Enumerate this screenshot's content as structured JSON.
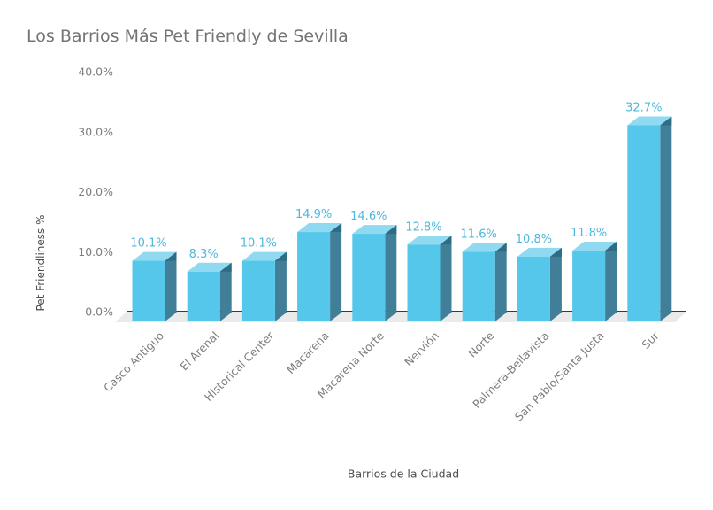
{
  "page": {
    "background": "#ffffff"
  },
  "chart_data": {
    "type": "bar",
    "title": "Los Barrios Más Pet Friendly de Sevilla",
    "xlabel": "Barrios de la Ciudad",
    "ylabel": "Pet Friendliness %",
    "categories": [
      "Casco Antiguo",
      "El Arenal",
      "Historical Center",
      "Macarena",
      "Macarena Norte",
      "Nervión",
      "Norte",
      "Palmera-Bellavista",
      "San Pablo/Santa Justa",
      "Sur"
    ],
    "values": [
      10.1,
      8.3,
      10.1,
      14.9,
      14.6,
      12.8,
      11.6,
      10.8,
      11.8,
      32.7
    ],
    "value_labels": [
      "10.1%",
      "8.3%",
      "10.1%",
      "14.9%",
      "14.6%",
      "12.8%",
      "11.6%",
      "10.8%",
      "11.8%",
      "32.7%"
    ],
    "ylim": [
      0,
      40
    ],
    "yticks": [
      0,
      10,
      20,
      30,
      40
    ],
    "ytick_labels": [
      "0.0%",
      "10.0%",
      "20.0%",
      "30.0%",
      "40.0%"
    ],
    "grid": false,
    "legend": false,
    "style_3d": true,
    "colors": {
      "bar_front": "#55c7eb",
      "bar_top": "#90daf1",
      "bar_side": "#417f99",
      "bar_side_dark": "#2e6b84",
      "floor": "#eaeaea",
      "axis_line": "#3a3a3a",
      "value_label": "#4fb8dc",
      "tick_label": "#7d7d7d",
      "title_color": "#737373",
      "axis_title_color": "#4d4d4d"
    }
  }
}
